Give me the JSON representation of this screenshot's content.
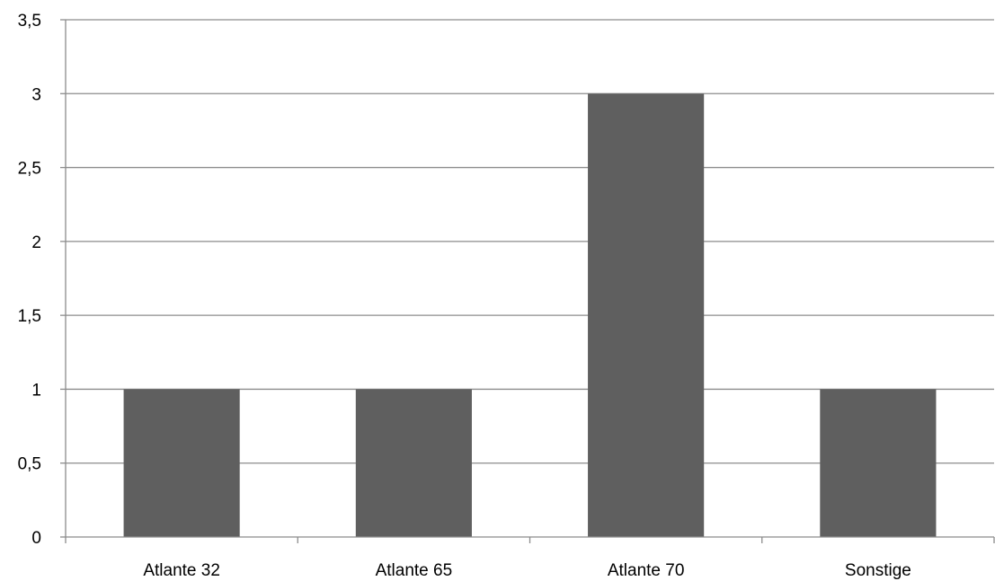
{
  "chart_data": {
    "type": "bar",
    "title": "",
    "xlabel": "",
    "ylabel": "",
    "categories": [
      "Atlante 32",
      "Atlante 65",
      "Atlante 70",
      "Sonstige"
    ],
    "values": [
      1,
      1,
      3,
      1
    ],
    "ylim": [
      0,
      3.5
    ],
    "y_ticks": [
      0,
      0.5,
      1,
      1.5,
      2,
      2.5,
      3,
      3.5
    ],
    "y_tick_labels": [
      "0",
      "0,5",
      "1",
      "1,5",
      "2",
      "2,5",
      "3",
      "3,5"
    ],
    "grid": true,
    "legend": "none",
    "bar_color": "#5f5f5f"
  }
}
